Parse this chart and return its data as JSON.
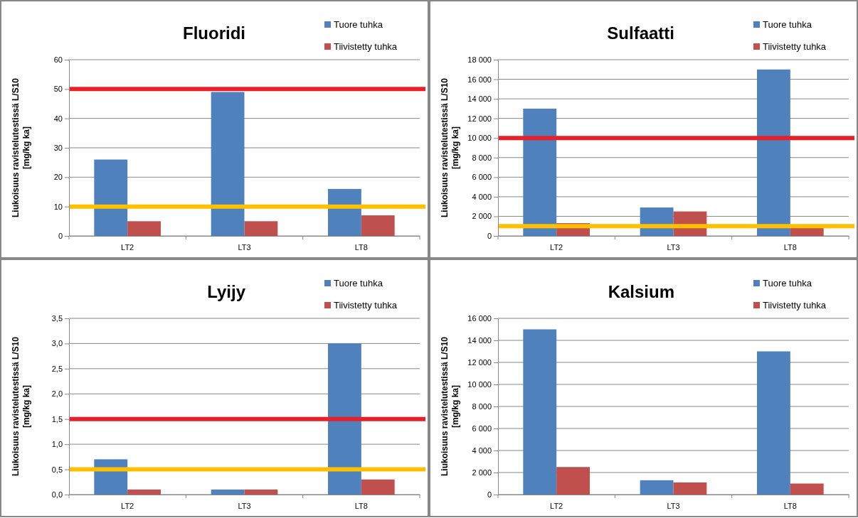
{
  "chart_data": [
    {
      "type": "bar",
      "title": "Fluoridi",
      "ylabel": "Liukoisuus ravistelutestissä L/S10\n[mg/kg ka]",
      "categories": [
        "LT2",
        "LT3",
        "LT8"
      ],
      "series": [
        {
          "name": "Tuore tuhka",
          "color": "#4f81bd",
          "values": [
            26,
            49,
            16
          ]
        },
        {
          "name": "Tiivistetty tuhka",
          "color": "#c0504d",
          "values": [
            5,
            5,
            7
          ]
        }
      ],
      "ylim": [
        0,
        60
      ],
      "yticks": [
        0,
        10,
        20,
        30,
        40,
        50,
        60
      ],
      "grid": "y",
      "legend": "top right",
      "ref_lines": [
        {
          "axis": "y",
          "value": 50,
          "color": "#e8202a"
        },
        {
          "axis": "y",
          "value": 10,
          "color": "#ffc000"
        }
      ]
    },
    {
      "type": "bar",
      "title": "Sulfaatti",
      "ylabel": "Liukoisuus ravistelutestissä L/S10\n[mg/kg ka]",
      "categories": [
        "LT2",
        "LT3",
        "LT8"
      ],
      "series": [
        {
          "name": "Tuore tuhka",
          "color": "#4f81bd",
          "values": [
            13000,
            2900,
            17000
          ]
        },
        {
          "name": "Tiivistetty tuhka",
          "color": "#c0504d",
          "values": [
            1300,
            2500,
            800
          ]
        }
      ],
      "ylim": [
        0,
        18000
      ],
      "yticks": [
        0,
        {
          "value": 2000,
          "label": "2 000"
        },
        {
          "value": 4000,
          "label": "4 000"
        },
        {
          "value": 6000,
          "label": "6 000"
        },
        {
          "value": 8000,
          "label": "8 000"
        },
        {
          "value": 10000,
          "label": "10 000"
        },
        {
          "value": 12000,
          "label": "12 000"
        },
        {
          "value": 14000,
          "label": "14 000"
        },
        {
          "value": 16000,
          "label": "16 000"
        },
        {
          "value": 18000,
          "label": "18 000"
        }
      ],
      "grid": "y",
      "legend": "top right",
      "ref_lines": [
        {
          "axis": "y",
          "value": 10000,
          "color": "#e8202a"
        },
        {
          "axis": "y",
          "value": 1000,
          "color": "#ffc000"
        }
      ]
    },
    {
      "type": "bar",
      "title": "Lyijy",
      "ylabel": "Liukoisuus ravistelutestissä L/S10\n[mg/kg ka]",
      "categories": [
        "LT2",
        "LT3",
        "LT8"
      ],
      "series": [
        {
          "name": "Tuore tuhka",
          "color": "#4f81bd",
          "values": [
            0.7,
            0.1,
            3.0
          ]
        },
        {
          "name": "Tiivistetty tuhka",
          "color": "#c0504d",
          "values": [
            0.1,
            0.1,
            0.3
          ]
        }
      ],
      "ylim": [
        0,
        3.5
      ],
      "yticks": [
        {
          "value": 0,
          "label": "0,0"
        },
        {
          "value": 0.5,
          "label": "0,5"
        },
        {
          "value": 1,
          "label": "1,0"
        },
        {
          "value": 1.5,
          "label": "1,5"
        },
        {
          "value": 2,
          "label": "2,0"
        },
        {
          "value": 2.5,
          "label": "2,5"
        },
        {
          "value": 3,
          "label": "3,0"
        },
        {
          "value": 3.5,
          "label": "3,5"
        }
      ],
      "grid": "y",
      "legend": "top right",
      "ref_lines": [
        {
          "axis": "y",
          "value": 1.5,
          "color": "#e8202a"
        },
        {
          "axis": "y",
          "value": 0.5,
          "color": "#ffc000"
        }
      ]
    },
    {
      "type": "bar",
      "title": "Kalsium",
      "ylabel": "Liukoisuus ravistelutestissä L/S10\n[mg/kg ka]",
      "categories": [
        "LT2",
        "LT3",
        "LT8"
      ],
      "series": [
        {
          "name": "Tuore tuhka",
          "color": "#4f81bd",
          "values": [
            15000,
            1300,
            13000
          ]
        },
        {
          "name": "Tiivistetty tuhka",
          "color": "#c0504d",
          "values": [
            2500,
            1100,
            1000
          ]
        }
      ],
      "ylim": [
        0,
        16000
      ],
      "yticks": [
        0,
        {
          "value": 2000,
          "label": "2 000"
        },
        {
          "value": 4000,
          "label": "4 000"
        },
        {
          "value": 6000,
          "label": "6 000"
        },
        {
          "value": 8000,
          "label": "8 000"
        },
        {
          "value": 10000,
          "label": "10 000"
        },
        {
          "value": 12000,
          "label": "12 000"
        },
        {
          "value": 14000,
          "label": "14 000"
        },
        {
          "value": 16000,
          "label": "16 000"
        }
      ],
      "grid": "y",
      "legend": "top right"
    }
  ]
}
